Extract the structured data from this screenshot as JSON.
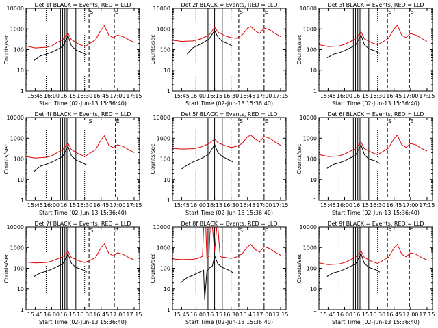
{
  "layout": {
    "rows": 3,
    "cols": 3
  },
  "colors": {
    "events": "#000000",
    "lld": "#dd0000",
    "axes": "#000000"
  },
  "shared": {
    "title_suffix": "BLACK = Events, RED = LLD",
    "xlabel": "Start Time (02-Jun-13 15:36:40)",
    "ylabel": "Counts/sec",
    "x_ticks": [
      "15:45",
      "16:00",
      "16:15",
      "16:30",
      "16:45",
      "17:00",
      "17:15"
    ],
    "y_ticks": [
      "1",
      "10",
      "100",
      "1000",
      "10000"
    ],
    "marker_labels": {
      "S": "S",
      "E": "E"
    }
  },
  "chart_data": [
    {
      "type": "line",
      "title": "Det 1f BLACK = Events, RED = LLD",
      "xlim": [
        "15:36:40",
        "17:20:00"
      ],
      "ylim": [
        1,
        10000
      ],
      "yscale": "log",
      "markers": {
        "dotted": [
          "15:55",
          "16:30"
        ],
        "solid": [
          "16:08",
          "16:10",
          "16:12",
          "16:14",
          "16:22"
        ],
        "dashed": [
          "16:34",
          "16:57"
        ]
      },
      "series": [
        {
          "key": "lld",
          "x": [
            "15:37",
            "15:45",
            "15:55",
            "16:00",
            "16:05",
            "16:10",
            "16:15",
            "16:18",
            "16:25",
            "16:30",
            "16:35",
            "16:40",
            "16:45",
            "16:48",
            "16:52",
            "16:56",
            "17:00",
            "17:05",
            "17:10",
            "17:15"
          ],
          "y": [
            150,
            120,
            130,
            150,
            220,
            300,
            620,
            300,
            180,
            140,
            200,
            300,
            900,
            1400,
            500,
            380,
            500,
            420,
            300,
            220
          ]
        },
        {
          "key": "events",
          "x": [
            "15:44",
            "15:50",
            "15:55",
            "16:00",
            "16:05",
            "16:10",
            "16:15",
            "16:18",
            "16:22",
            "16:28",
            "16:32"
          ],
          "y": [
            30,
            50,
            60,
            75,
            100,
            140,
            450,
            150,
            95,
            70,
            55
          ]
        }
      ]
    },
    {
      "type": "line",
      "title": "Det 2f BLACK = Events, RED = LLD",
      "xlim": [
        "15:36:40",
        "17:20:00"
      ],
      "ylim": [
        1,
        10000
      ],
      "yscale": "log",
      "markers": {
        "dotted": [
          "15:58",
          "16:30"
        ],
        "solid": [
          "16:09",
          "16:15",
          "16:22"
        ],
        "dashed": [
          "16:37",
          "17:00"
        ]
      },
      "series": [
        {
          "key": "lld",
          "x": [
            "15:37",
            "15:45",
            "15:55",
            "16:00",
            "16:05",
            "16:10",
            "16:15",
            "16:18",
            "16:25",
            "16:30",
            "16:35",
            "16:40",
            "16:45",
            "16:48",
            "16:52",
            "16:56",
            "17:00",
            "17:05",
            "17:10",
            "17:15"
          ],
          "y": [
            280,
            250,
            260,
            300,
            380,
            500,
            1200,
            700,
            450,
            380,
            350,
            500,
            1100,
            1300,
            800,
            600,
            1100,
            900,
            600,
            420
          ]
        },
        {
          "key": "events",
          "x": [
            "15:50",
            "15:55",
            "16:00",
            "16:05",
            "16:10",
            "16:15",
            "16:18",
            "16:22",
            "16:28",
            "16:32"
          ],
          "y": [
            60,
            120,
            160,
            220,
            320,
            850,
            400,
            250,
            180,
            140
          ]
        }
      ]
    },
    {
      "type": "line",
      "title": "Det 3f BLACK = Events, RED = LLD",
      "xlim": [
        "15:36:40",
        "17:20:00"
      ],
      "ylim": [
        1,
        10000
      ],
      "yscale": "log",
      "markers": {
        "dotted": [
          "15:55",
          "16:30"
        ],
        "solid": [
          "16:08",
          "16:10",
          "16:12",
          "16:14",
          "16:22"
        ],
        "dashed": [
          "16:39",
          "16:59"
        ]
      },
      "series": [
        {
          "key": "lld",
          "x": [
            "15:37",
            "15:45",
            "15:55",
            "16:00",
            "16:05",
            "16:10",
            "16:15",
            "16:18",
            "16:25",
            "16:30",
            "16:35",
            "16:40",
            "16:45",
            "16:48",
            "16:52",
            "16:56",
            "17:00",
            "17:05",
            "17:10",
            "17:15"
          ],
          "y": [
            170,
            140,
            150,
            180,
            240,
            330,
            720,
            330,
            210,
            170,
            240,
            350,
            1000,
            1500,
            500,
            380,
            600,
            500,
            350,
            250
          ]
        },
        {
          "key": "events",
          "x": [
            "15:44",
            "15:50",
            "15:55",
            "16:00",
            "16:05",
            "16:10",
            "16:15",
            "16:18",
            "16:22",
            "16:28",
            "16:32"
          ],
          "y": [
            40,
            60,
            70,
            90,
            120,
            160,
            500,
            170,
            110,
            85,
            65
          ]
        }
      ]
    },
    {
      "type": "line",
      "title": "Det 4f BLACK = Events, RED = LLD",
      "xlim": [
        "15:36:40",
        "17:20:00"
      ],
      "ylim": [
        1,
        10000
      ],
      "yscale": "log",
      "markers": {
        "dotted": [
          "15:55",
          "16:30"
        ],
        "solid": [
          "16:08",
          "16:10",
          "16:12",
          "16:14",
          "16:22"
        ],
        "dashed": [
          "16:33",
          "16:58"
        ]
      },
      "series": [
        {
          "key": "lld",
          "x": [
            "15:37",
            "15:45",
            "15:55",
            "16:00",
            "16:05",
            "16:10",
            "16:15",
            "16:18",
            "16:25",
            "16:30",
            "16:35",
            "16:40",
            "16:45",
            "16:48",
            "16:52",
            "16:56",
            "17:00",
            "17:05",
            "17:10",
            "17:15"
          ],
          "y": [
            130,
            110,
            120,
            140,
            200,
            280,
            560,
            280,
            170,
            130,
            190,
            280,
            850,
            1300,
            460,
            350,
            480,
            400,
            280,
            200
          ]
        },
        {
          "key": "events",
          "x": [
            "15:44",
            "15:50",
            "15:55",
            "16:00",
            "16:05",
            "16:10",
            "16:15",
            "16:18",
            "16:22",
            "16:28",
            "16:32"
          ],
          "y": [
            25,
            45,
            55,
            70,
            95,
            130,
            400,
            140,
            90,
            65,
            50
          ]
        }
      ]
    },
    {
      "type": "line",
      "title": "Det 5f BLACK = Events, RED = LLD",
      "xlim": [
        "15:36:40",
        "17:20:00"
      ],
      "ylim": [
        1,
        10000
      ],
      "yscale": "log",
      "markers": {
        "dotted": [
          "15:58",
          "16:30"
        ],
        "solid": [
          "16:09",
          "16:15",
          "16:22"
        ],
        "dashed": [
          "16:37",
          "17:00"
        ]
      },
      "series": [
        {
          "key": "lld",
          "x": [
            "15:37",
            "15:45",
            "15:55",
            "16:00",
            "16:05",
            "16:10",
            "16:15",
            "16:18",
            "16:25",
            "16:30",
            "16:35",
            "16:40",
            "16:45",
            "16:48",
            "16:52",
            "16:56",
            "17:00",
            "17:05",
            "17:10",
            "17:15"
          ],
          "y": [
            320,
            300,
            310,
            340,
            420,
            550,
            900,
            600,
            430,
            360,
            400,
            550,
            1200,
            1400,
            900,
            650,
            1200,
            1000,
            650,
            450
          ]
        },
        {
          "key": "events",
          "x": [
            "15:44",
            "15:50",
            "15:55",
            "16:00",
            "16:05",
            "16:10",
            "16:15",
            "16:18",
            "16:22",
            "16:28",
            "16:32"
          ],
          "y": [
            30,
            50,
            70,
            90,
            120,
            170,
            500,
            200,
            130,
            90,
            70
          ]
        }
      ]
    },
    {
      "type": "line",
      "title": "Det 6f BLACK = Events, RED = LLD",
      "xlim": [
        "15:36:40",
        "17:20:00"
      ],
      "ylim": [
        1,
        10000
      ],
      "yscale": "log",
      "markers": {
        "dotted": [
          "15:55",
          "16:30"
        ],
        "solid": [
          "16:08",
          "16:10",
          "16:12",
          "16:14",
          "16:22"
        ],
        "dashed": [
          "16:39",
          "16:59"
        ]
      },
      "series": [
        {
          "key": "lld",
          "x": [
            "15:37",
            "15:45",
            "15:55",
            "16:00",
            "16:05",
            "16:10",
            "16:15",
            "16:18",
            "16:25",
            "16:30",
            "16:35",
            "16:40",
            "16:45",
            "16:48",
            "16:52",
            "16:56",
            "17:00",
            "17:05",
            "17:10",
            "17:15"
          ],
          "y": [
            160,
            130,
            140,
            170,
            230,
            310,
            650,
            310,
            200,
            160,
            230,
            330,
            950,
            1400,
            480,
            360,
            560,
            470,
            320,
            240
          ]
        },
        {
          "key": "events",
          "x": [
            "15:44",
            "15:50",
            "15:55",
            "16:00",
            "16:05",
            "16:10",
            "16:15",
            "16:18",
            "16:22",
            "16:28",
            "16:32"
          ],
          "y": [
            35,
            55,
            65,
            80,
            110,
            150,
            480,
            160,
            100,
            80,
            60
          ]
        }
      ]
    },
    {
      "type": "line",
      "title": "Det 7f BLACK = Events, RED = LLD",
      "xlim": [
        "15:36:40",
        "17:20:00"
      ],
      "ylim": [
        1,
        10000
      ],
      "yscale": "log",
      "markers": {
        "dotted": [
          "15:55",
          "16:30"
        ],
        "solid": [
          "16:08",
          "16:10",
          "16:12",
          "16:14",
          "16:22"
        ],
        "dashed": [
          "16:34",
          "16:57"
        ]
      },
      "series": [
        {
          "key": "lld",
          "x": [
            "15:37",
            "15:45",
            "15:55",
            "16:00",
            "16:05",
            "16:10",
            "16:15",
            "16:18",
            "16:25",
            "16:30",
            "16:35",
            "16:40",
            "16:45",
            "16:48",
            "16:52",
            "16:56",
            "17:00",
            "17:05",
            "17:10",
            "17:15"
          ],
          "y": [
            200,
            180,
            190,
            220,
            280,
            360,
            650,
            330,
            230,
            190,
            240,
            330,
            1000,
            1500,
            520,
            400,
            560,
            470,
            330,
            250
          ]
        },
        {
          "key": "events",
          "x": [
            "15:44",
            "15:50",
            "15:55",
            "16:00",
            "16:05",
            "16:10",
            "16:15",
            "16:18",
            "16:22",
            "16:28",
            "16:32"
          ],
          "y": [
            40,
            60,
            70,
            90,
            120,
            160,
            480,
            170,
            110,
            85,
            65
          ]
        }
      ]
    },
    {
      "type": "line",
      "title": "Det 8f BLACK = Events, RED = LLD",
      "xlim": [
        "15:36:40",
        "17:20:00"
      ],
      "ylim": [
        1,
        10000
      ],
      "yscale": "log",
      "markers": {
        "dotted": [
          "15:58",
          "16:30"
        ],
        "solid": [
          "16:09",
          "16:15",
          "16:22"
        ],
        "dashed": [
          "16:37",
          "17:00"
        ]
      },
      "series": [
        {
          "key": "lld",
          "x": [
            "15:37",
            "15:45",
            "15:55",
            "16:00",
            "16:04",
            "16:05",
            "16:07",
            "16:08",
            "16:10",
            "16:11",
            "16:13",
            "16:15",
            "16:17",
            "16:18",
            "16:20",
            "16:21",
            "16:25",
            "16:30",
            "16:35",
            "16:40",
            "16:45",
            "16:48",
            "16:52",
            "16:56",
            "17:00",
            "17:05",
            "17:10",
            "17:15"
          ],
          "y": [
            280,
            260,
            270,
            300,
            380,
            10000,
            10000,
            300,
            400,
            10000,
            10000,
            650,
            10000,
            10000,
            400,
            350,
            330,
            300,
            350,
            500,
            1100,
            1400,
            800,
            600,
            1100,
            900,
            600,
            420
          ]
        },
        {
          "key": "events",
          "x": [
            "15:44",
            "15:50",
            "15:55",
            "16:00",
            "16:05",
            "16:06",
            "16:08",
            "16:10",
            "16:13",
            "16:15",
            "16:18",
            "16:22",
            "16:28",
            "16:32"
          ],
          "y": [
            20,
            35,
            45,
            60,
            80,
            3,
            70,
            100,
            130,
            400,
            160,
            110,
            80,
            60
          ]
        }
      ]
    },
    {
      "type": "line",
      "title": "Det 9f BLACK = Events, RED = LLD",
      "xlim": [
        "15:36:40",
        "17:20:00"
      ],
      "ylim": [
        1,
        10000
      ],
      "yscale": "log",
      "markers": {
        "dotted": [
          "15:55",
          "16:30"
        ],
        "solid": [
          "16:08",
          "16:10",
          "16:12",
          "16:14",
          "16:22"
        ],
        "dashed": [
          "16:39",
          "16:59"
        ]
      },
      "series": [
        {
          "key": "lld",
          "x": [
            "15:37",
            "15:45",
            "15:55",
            "16:00",
            "16:05",
            "16:10",
            "16:15",
            "16:18",
            "16:25",
            "16:30",
            "16:35",
            "16:40",
            "16:45",
            "16:48",
            "16:52",
            "16:56",
            "17:00",
            "17:05",
            "17:10",
            "17:15"
          ],
          "y": [
            180,
            150,
            160,
            190,
            250,
            340,
            680,
            330,
            210,
            170,
            240,
            340,
            950,
            1400,
            480,
            360,
            560,
            470,
            330,
            250
          ]
        },
        {
          "key": "events",
          "x": [
            "15:44",
            "15:50",
            "15:55",
            "16:00",
            "16:05",
            "16:10",
            "16:15",
            "16:18",
            "16:22",
            "16:28",
            "16:32"
          ],
          "y": [
            40,
            60,
            70,
            90,
            120,
            160,
            500,
            170,
            110,
            85,
            65
          ]
        }
      ]
    }
  ]
}
